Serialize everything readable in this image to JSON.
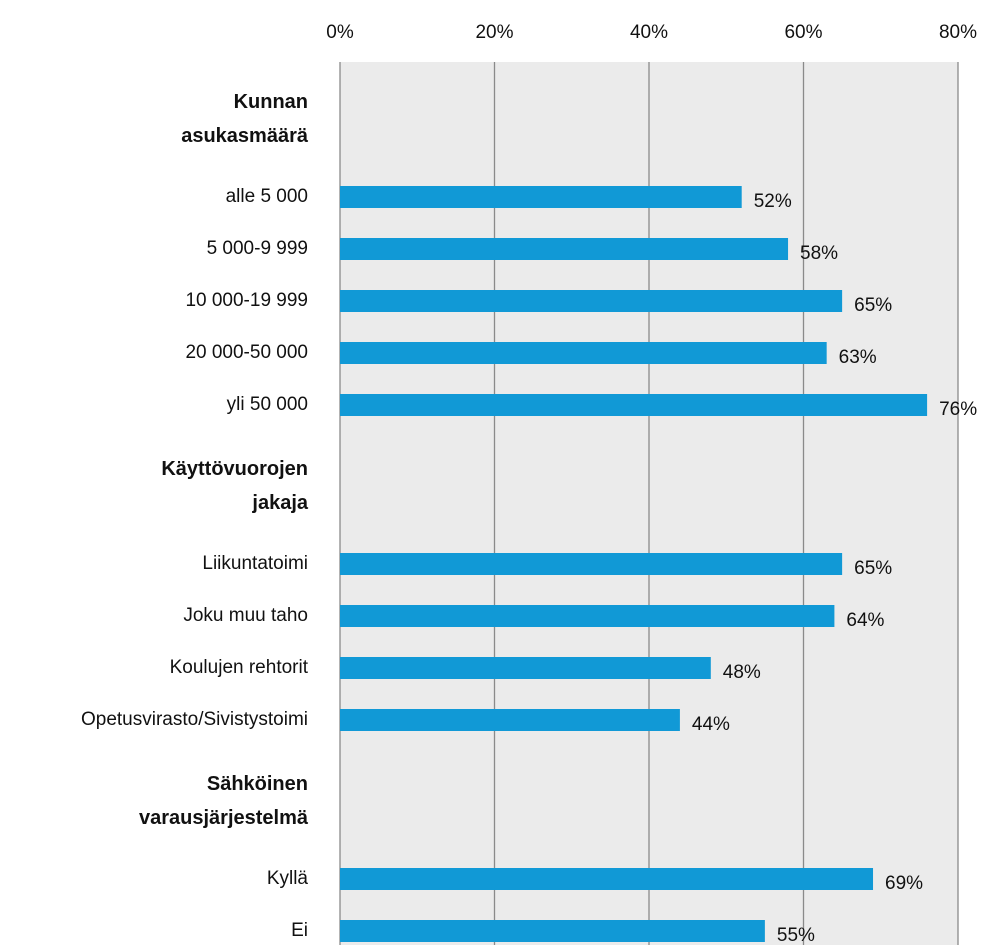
{
  "chart_data": {
    "type": "bar",
    "orientation": "horizontal",
    "groups": [
      {
        "name": "Kunnan asukasmäärä",
        "categories": [
          "alle 5 000",
          "5 000-9 999",
          "10 000-19 999",
          "20 000-50 000",
          "yli 50 000"
        ],
        "values": [
          52,
          58,
          65,
          63,
          76
        ],
        "value_labels": [
          "52%",
          "58%",
          "65%",
          "63%",
          "76%"
        ]
      },
      {
        "name": "Käyttövuorojen jakaja",
        "categories": [
          "Liikuntatoimi",
          "Joku muu taho",
          "Koulujen rehtorit",
          "Opetusvirasto/Sivistystoimi"
        ],
        "values": [
          65,
          64,
          48,
          44
        ],
        "value_labels": [
          "65%",
          "64%",
          "48%",
          "44%"
        ]
      },
      {
        "name": "Sähköinen varausjärjestelmä",
        "categories": [
          "Kyllä",
          "Ei"
        ],
        "values": [
          69,
          55
        ],
        "value_labels": [
          "69%",
          "55%"
        ]
      }
    ],
    "color": "#1199d6",
    "xlim": [
      0,
      80
    ],
    "xticks": [
      {
        "value": 0,
        "label": "0%"
      },
      {
        "value": 20,
        "label": "20%"
      },
      {
        "value": 40,
        "label": "40%"
      },
      {
        "value": 60,
        "label": "60%"
      },
      {
        "value": 80,
        "label": "80%"
      }
    ],
    "grid": true
  }
}
